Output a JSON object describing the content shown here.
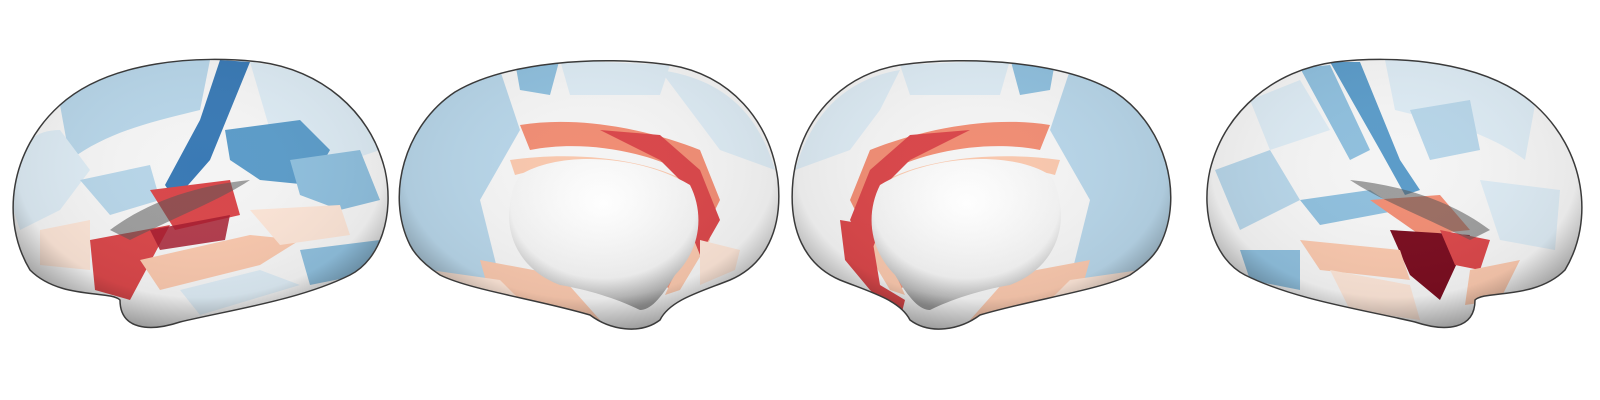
{
  "figure": {
    "views": [
      {
        "name": "left-lateral"
      },
      {
        "name": "left-medial"
      },
      {
        "name": "right-medial"
      },
      {
        "name": "right-lateral"
      }
    ],
    "colormap": {
      "name": "RdBu_r",
      "strong_red": "#a51c2f",
      "red": "#d9474a",
      "salmon": "#f08d74",
      "light_salmon": "#f8c7ad",
      "pale_peach": "#fbe4d6",
      "neutral": "#f4f4f4",
      "pale_blue": "#dceaf3",
      "light_blue": "#b7d5e8",
      "mid_blue": "#8fbfdd",
      "blue": "#5c9cc9",
      "deep_blue": "#3a7ab5",
      "dark_red": "#7a0d20"
    }
  }
}
